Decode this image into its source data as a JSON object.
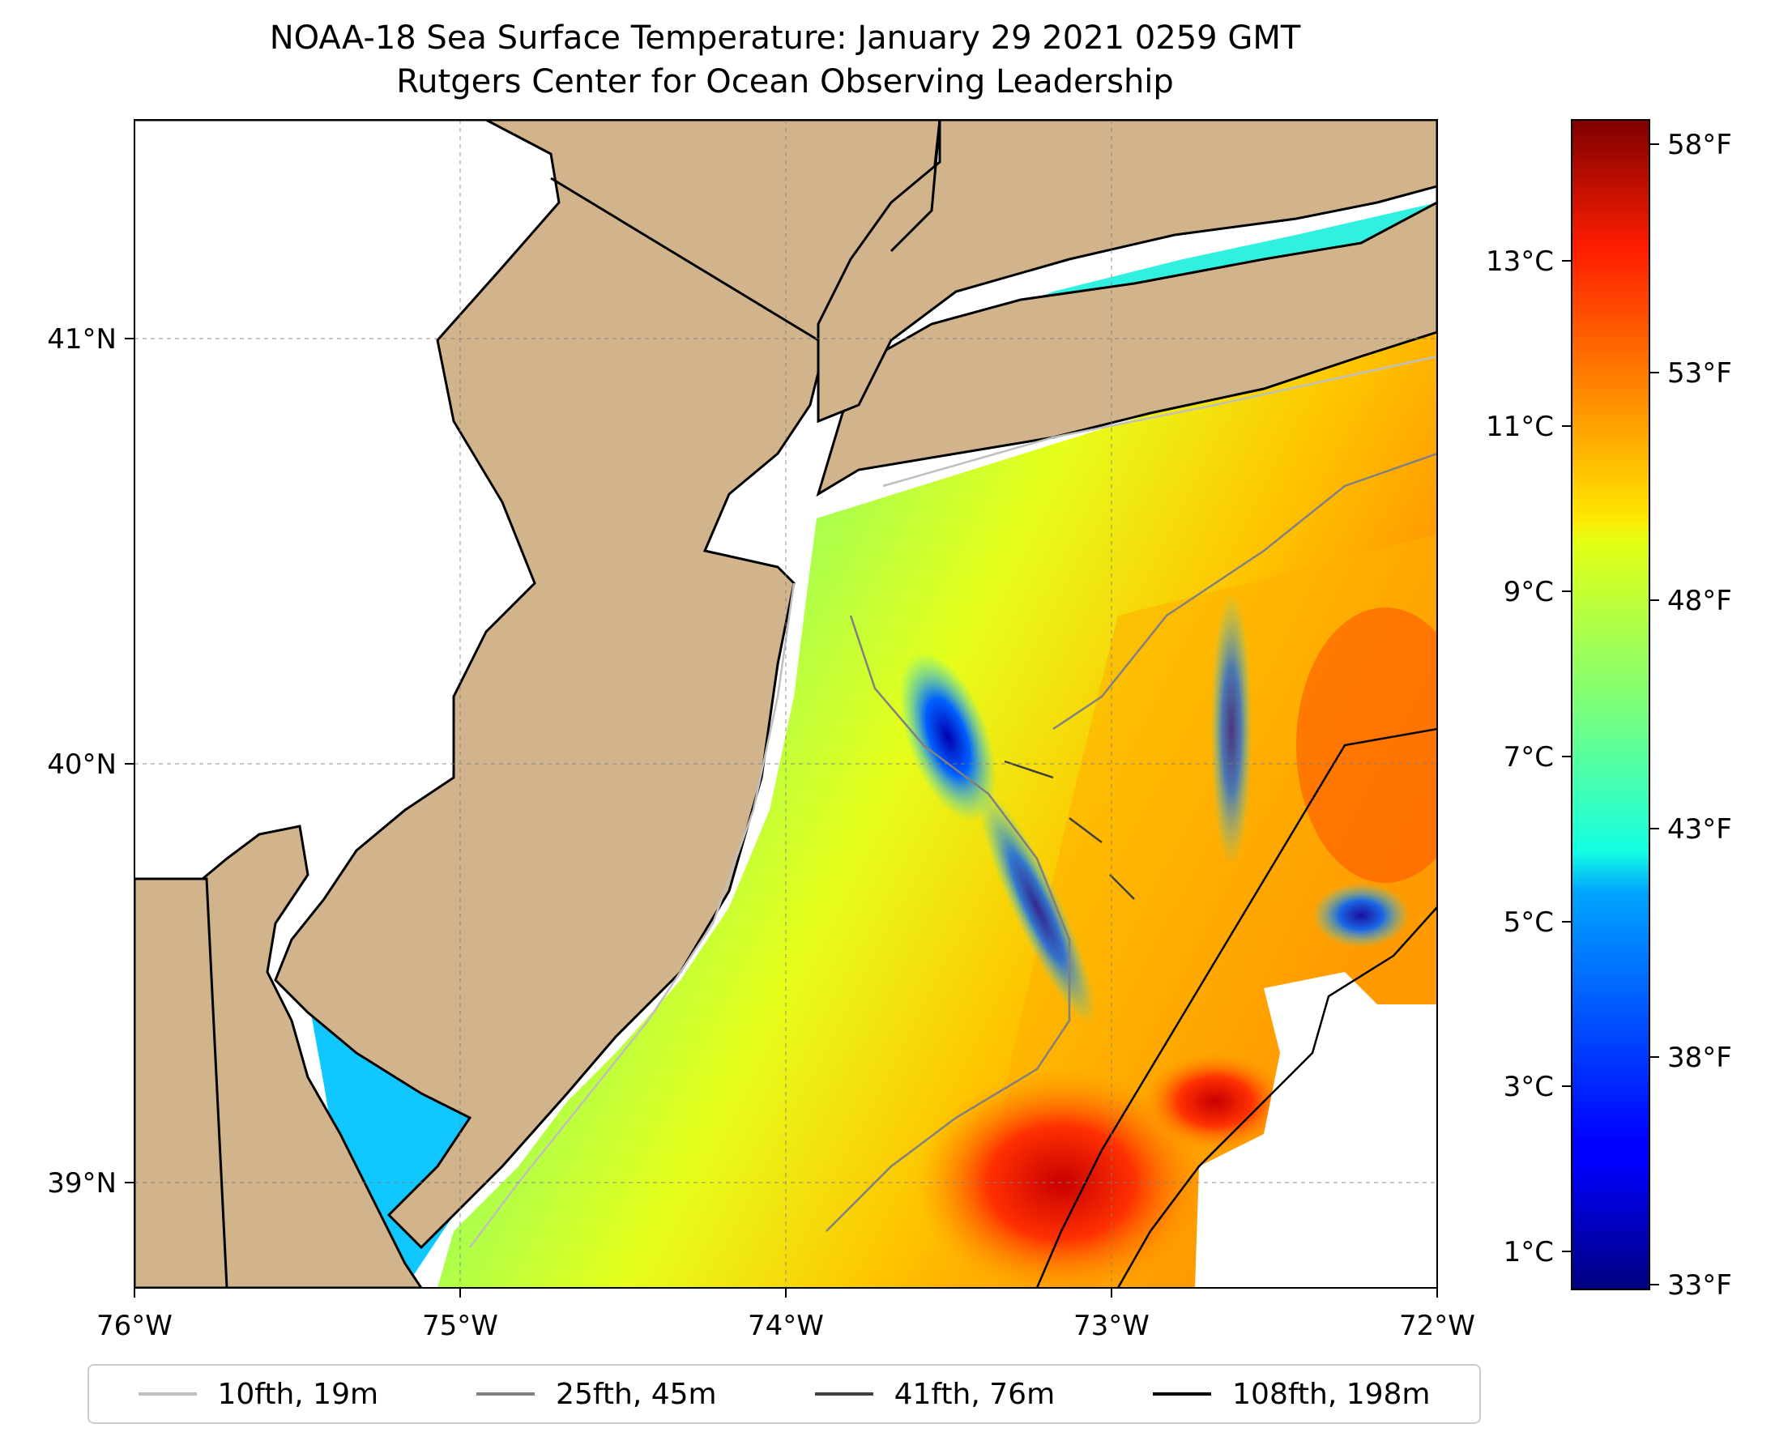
{
  "title": {
    "line1": "NOAA-18 Sea Surface Temperature: January 29 2021 0259 GMT",
    "line2": "Rutgers Center for Ocean Observing Leadership"
  },
  "map": {
    "lon_ticks": [
      "76°W",
      "75°W",
      "74°W",
      "73°W",
      "72°W"
    ],
    "lat_ticks": [
      "41°N",
      "40°N",
      "39°N"
    ],
    "land_color": "#d2b48c",
    "coast_color": "#000000",
    "grid": "on"
  },
  "colorbar": {
    "colormap": "jet",
    "celsius_ticks": [
      "13°C",
      "11°C",
      "9°C",
      "7°C",
      "5°C",
      "3°C",
      "1°C"
    ],
    "fahrenheit_ticks": [
      "58°F",
      "53°F",
      "48°F",
      "43°F",
      "38°F",
      "33°F"
    ],
    "range_f": [
      33,
      59
    ]
  },
  "legend": {
    "entries": [
      {
        "label": "10fth, 19m",
        "color": "#bfbfbf"
      },
      {
        "label": "25fth, 45m",
        "color": "#808080"
      },
      {
        "label": "41fth, 76m",
        "color": "#404040"
      },
      {
        "label": "108fth, 198m",
        "color": "#000000"
      }
    ]
  }
}
